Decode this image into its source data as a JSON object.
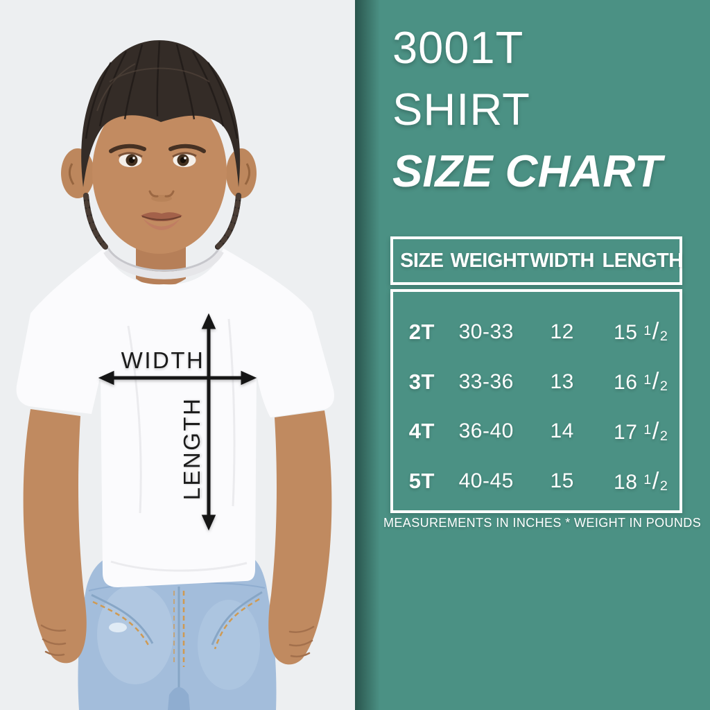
{
  "colors": {
    "panel_teal": "#4B9184",
    "photo_background": "#EDEFF1",
    "text_white": "#FFFFFF",
    "arrow_black": "#161616",
    "jeans_blue": "#A3BDDB",
    "shirt_white": "#FBFBFD"
  },
  "title": {
    "line1": "3001T",
    "line2": "SHIRT",
    "line3": "SIZE CHART"
  },
  "photo": {
    "width_label": "WIDTH",
    "length_label": "LENGTH"
  },
  "chart_data": {
    "type": "table",
    "title": "3001T SHIRT SIZE CHART",
    "columns": [
      "SIZE",
      "WEIGHT",
      "WIDTH",
      "LENGTH"
    ],
    "rows": [
      {
        "size": "2T",
        "weight": "30-33",
        "width": "12",
        "length": "15 1/2"
      },
      {
        "size": "3T",
        "weight": "33-36",
        "width": "13",
        "length": "16 1/2"
      },
      {
        "size": "4T",
        "weight": "36-40",
        "width": "14",
        "length": "17 1/2"
      },
      {
        "size": "5T",
        "weight": "40-45",
        "width": "15",
        "length": "18 1/2"
      }
    ],
    "footnote": "MEASUREMENTS IN INCHES * WEIGHT IN POUNDS"
  }
}
